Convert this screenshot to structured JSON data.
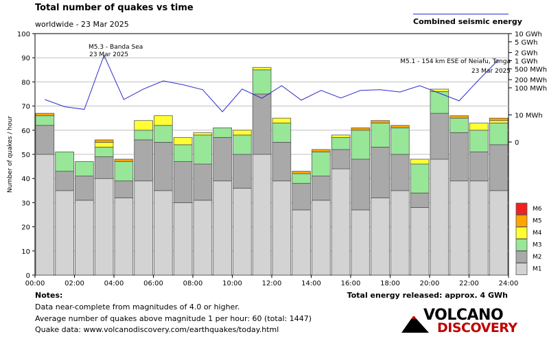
{
  "title": "Total number of quakes vs time",
  "subtitle": "worldwide - 23 Mar 2025",
  "energy_legend": "Combined seismic energy",
  "notes": {
    "title": "Notes:",
    "lines": [
      "Data near-complete from magnitudes of 4.0 or higher.",
      "Average number of quakes above magnitude 1 per hour: 60 (total: 1447)",
      "Quake data: www.volcanodiscovery.com/earthquakes/today.html"
    ]
  },
  "total_energy": "Total energy released: approx. 4 GWh",
  "logo": {
    "top": "VOLCANO",
    "bottom": "DISCOVERY"
  },
  "colors": {
    "M1": "#d3d3d3",
    "M2": "#a9a9a9",
    "M3": "#98e698",
    "M4": "#ffff33",
    "M5": "#ffa500",
    "M6": "#ee2222",
    "energy": "#2b2bd0",
    "grid": "#bfbfbf"
  },
  "chart_data": {
    "type": "bar",
    "stacked": true,
    "ylabel": "Number of quakes / hour",
    "ylim": [
      0,
      100
    ],
    "yticks": [
      0,
      10,
      20,
      30,
      40,
      50,
      60,
      70,
      80,
      90,
      100
    ],
    "xlim": [
      0,
      24
    ],
    "xticks": [
      "00:00",
      "02:00",
      "04:00",
      "06:00",
      "08:00",
      "10:00",
      "12:00",
      "14:00",
      "16:00",
      "18:00",
      "20:00",
      "22:00",
      "24:00"
    ],
    "hours": [
      0,
      1,
      2,
      3,
      4,
      5,
      6,
      7,
      8,
      9,
      10,
      11,
      12,
      13,
      14,
      15,
      16,
      17,
      18,
      19,
      20,
      21,
      22,
      23
    ],
    "legend": [
      "M6",
      "M5",
      "M4",
      "M3",
      "M2",
      "M1"
    ],
    "series": [
      {
        "name": "M1",
        "values": [
          50,
          35,
          31,
          40,
          32,
          39,
          35,
          30,
          31,
          39,
          36,
          50,
          39,
          27,
          31,
          44,
          27,
          32,
          35,
          28,
          48,
          39,
          39,
          35
        ]
      },
      {
        "name": "M2",
        "values": [
          12,
          8,
          10,
          9,
          7,
          17,
          20,
          17,
          15,
          18,
          14,
          25,
          16,
          11,
          10,
          8,
          21,
          21,
          15,
          6,
          19,
          20,
          12,
          19
        ]
      },
      {
        "name": "M3",
        "values": [
          4,
          8,
          6,
          4,
          8,
          4,
          7,
          7,
          12,
          4,
          8,
          10,
          8,
          4,
          10,
          5,
          12,
          10,
          11,
          12,
          9,
          6,
          9,
          9
        ]
      },
      {
        "name": "M4",
        "values": [
          0,
          0,
          0,
          2,
          0,
          4,
          4,
          3,
          1,
          0,
          2,
          1,
          2,
          0,
          0,
          1,
          0,
          0,
          0,
          2,
          1,
          0,
          3,
          1
        ]
      },
      {
        "name": "M5",
        "values": [
          1,
          0,
          0,
          1,
          1,
          0,
          0,
          0,
          0,
          0,
          0,
          0,
          0,
          1,
          1,
          0,
          1,
          1,
          1,
          0,
          0,
          1,
          0,
          1
        ]
      },
      {
        "name": "M6",
        "values": [
          0,
          0,
          0,
          0,
          0,
          0,
          0,
          0,
          0,
          0,
          0,
          0,
          0,
          0,
          0,
          0,
          0,
          0,
          0,
          0,
          0,
          0,
          0,
          0
        ]
      }
    ],
    "energy_axis": {
      "scale": "log",
      "unit": "MWh",
      "ticks": [
        {
          "label": "10 GWh",
          "value": 10000
        },
        {
          "label": "5 GWh",
          "value": 5000
        },
        {
          "label": "2 GWh",
          "value": 2000
        },
        {
          "label": "1 GWh",
          "value": 1000
        },
        {
          "label": "500 MWh",
          "value": 500
        },
        {
          "label": "200 MWh",
          "value": 200
        },
        {
          "label": "100 MWh",
          "value": 100
        },
        {
          "label": "10 MWh",
          "value": 10
        },
        {
          "label": "0",
          "value": 1
        }
      ]
    },
    "energy_series": {
      "name": "Combined seismic energy",
      "x": [
        0.5,
        1.5,
        2.5,
        3.5,
        4.5,
        5.5,
        6.5,
        7.5,
        8.5,
        9.5,
        10.5,
        11.5,
        12.5,
        13.5,
        14.5,
        15.5,
        16.5,
        17.5,
        18.5,
        19.5,
        20.5,
        21.5,
        22.5,
        23.5
      ],
      "values_mwh": [
        37,
        20,
        16,
        1580,
        37,
        90,
        180,
        130,
        85,
        13,
        90,
        41,
        120,
        35,
        80,
        42,
        80,
        85,
        70,
        120,
        63,
        33,
        200,
        1100
      ]
    },
    "annotations": [
      {
        "hour": 3.5,
        "lines": [
          "M5.3 - Banda Sea",
          "23 Mar 2025"
        ]
      },
      {
        "hour": 23.5,
        "lines": [
          "M5.1 - 154 km ESE of Neiafu, Tonga",
          "23 Mar 2025"
        ]
      }
    ]
  }
}
